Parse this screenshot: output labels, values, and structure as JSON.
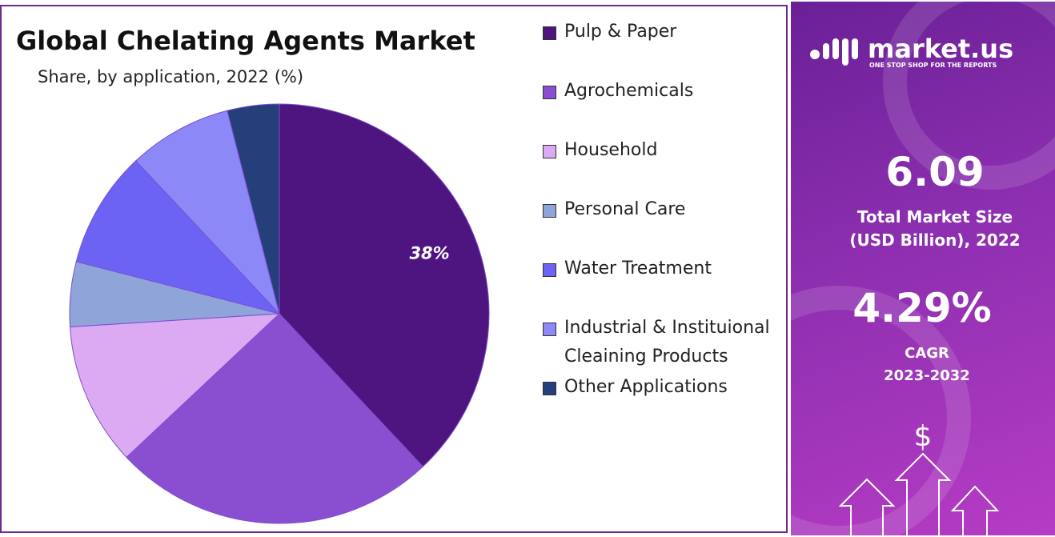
{
  "chart_data": {
    "type": "pie",
    "title": "Global Chelating Agents Market",
    "subtitle": "Share, by application, 2022 (%)",
    "categories": [
      "Pulp & Paper",
      "Agrochemicals",
      "Household",
      "Personal Care",
      "Water Treatment",
      "Industrial & Instituional Cleaining Products",
      "Other Applications"
    ],
    "values": [
      38,
      25,
      11,
      5,
      9,
      8,
      4
    ],
    "value_labels": [
      "38%",
      null,
      null,
      null,
      null,
      null,
      null
    ],
    "colors": [
      "#4e1580",
      "#8a4fd0",
      "#dcaaf2",
      "#8fa4d8",
      "#6c63f5",
      "#8c88f8",
      "#243f7a"
    ]
  },
  "sidebar": {
    "brand": "market.us",
    "tagline": "ONE STOP SHOP FOR THE REPORTS",
    "market_size": "6.09",
    "market_size_label_1": "Total Market Size",
    "market_size_label_2": "(USD Billion), 2022",
    "cagr": "4.29%",
    "cagr_label": "CAGR",
    "cagr_period": "2023-2032",
    "icon": "$"
  }
}
